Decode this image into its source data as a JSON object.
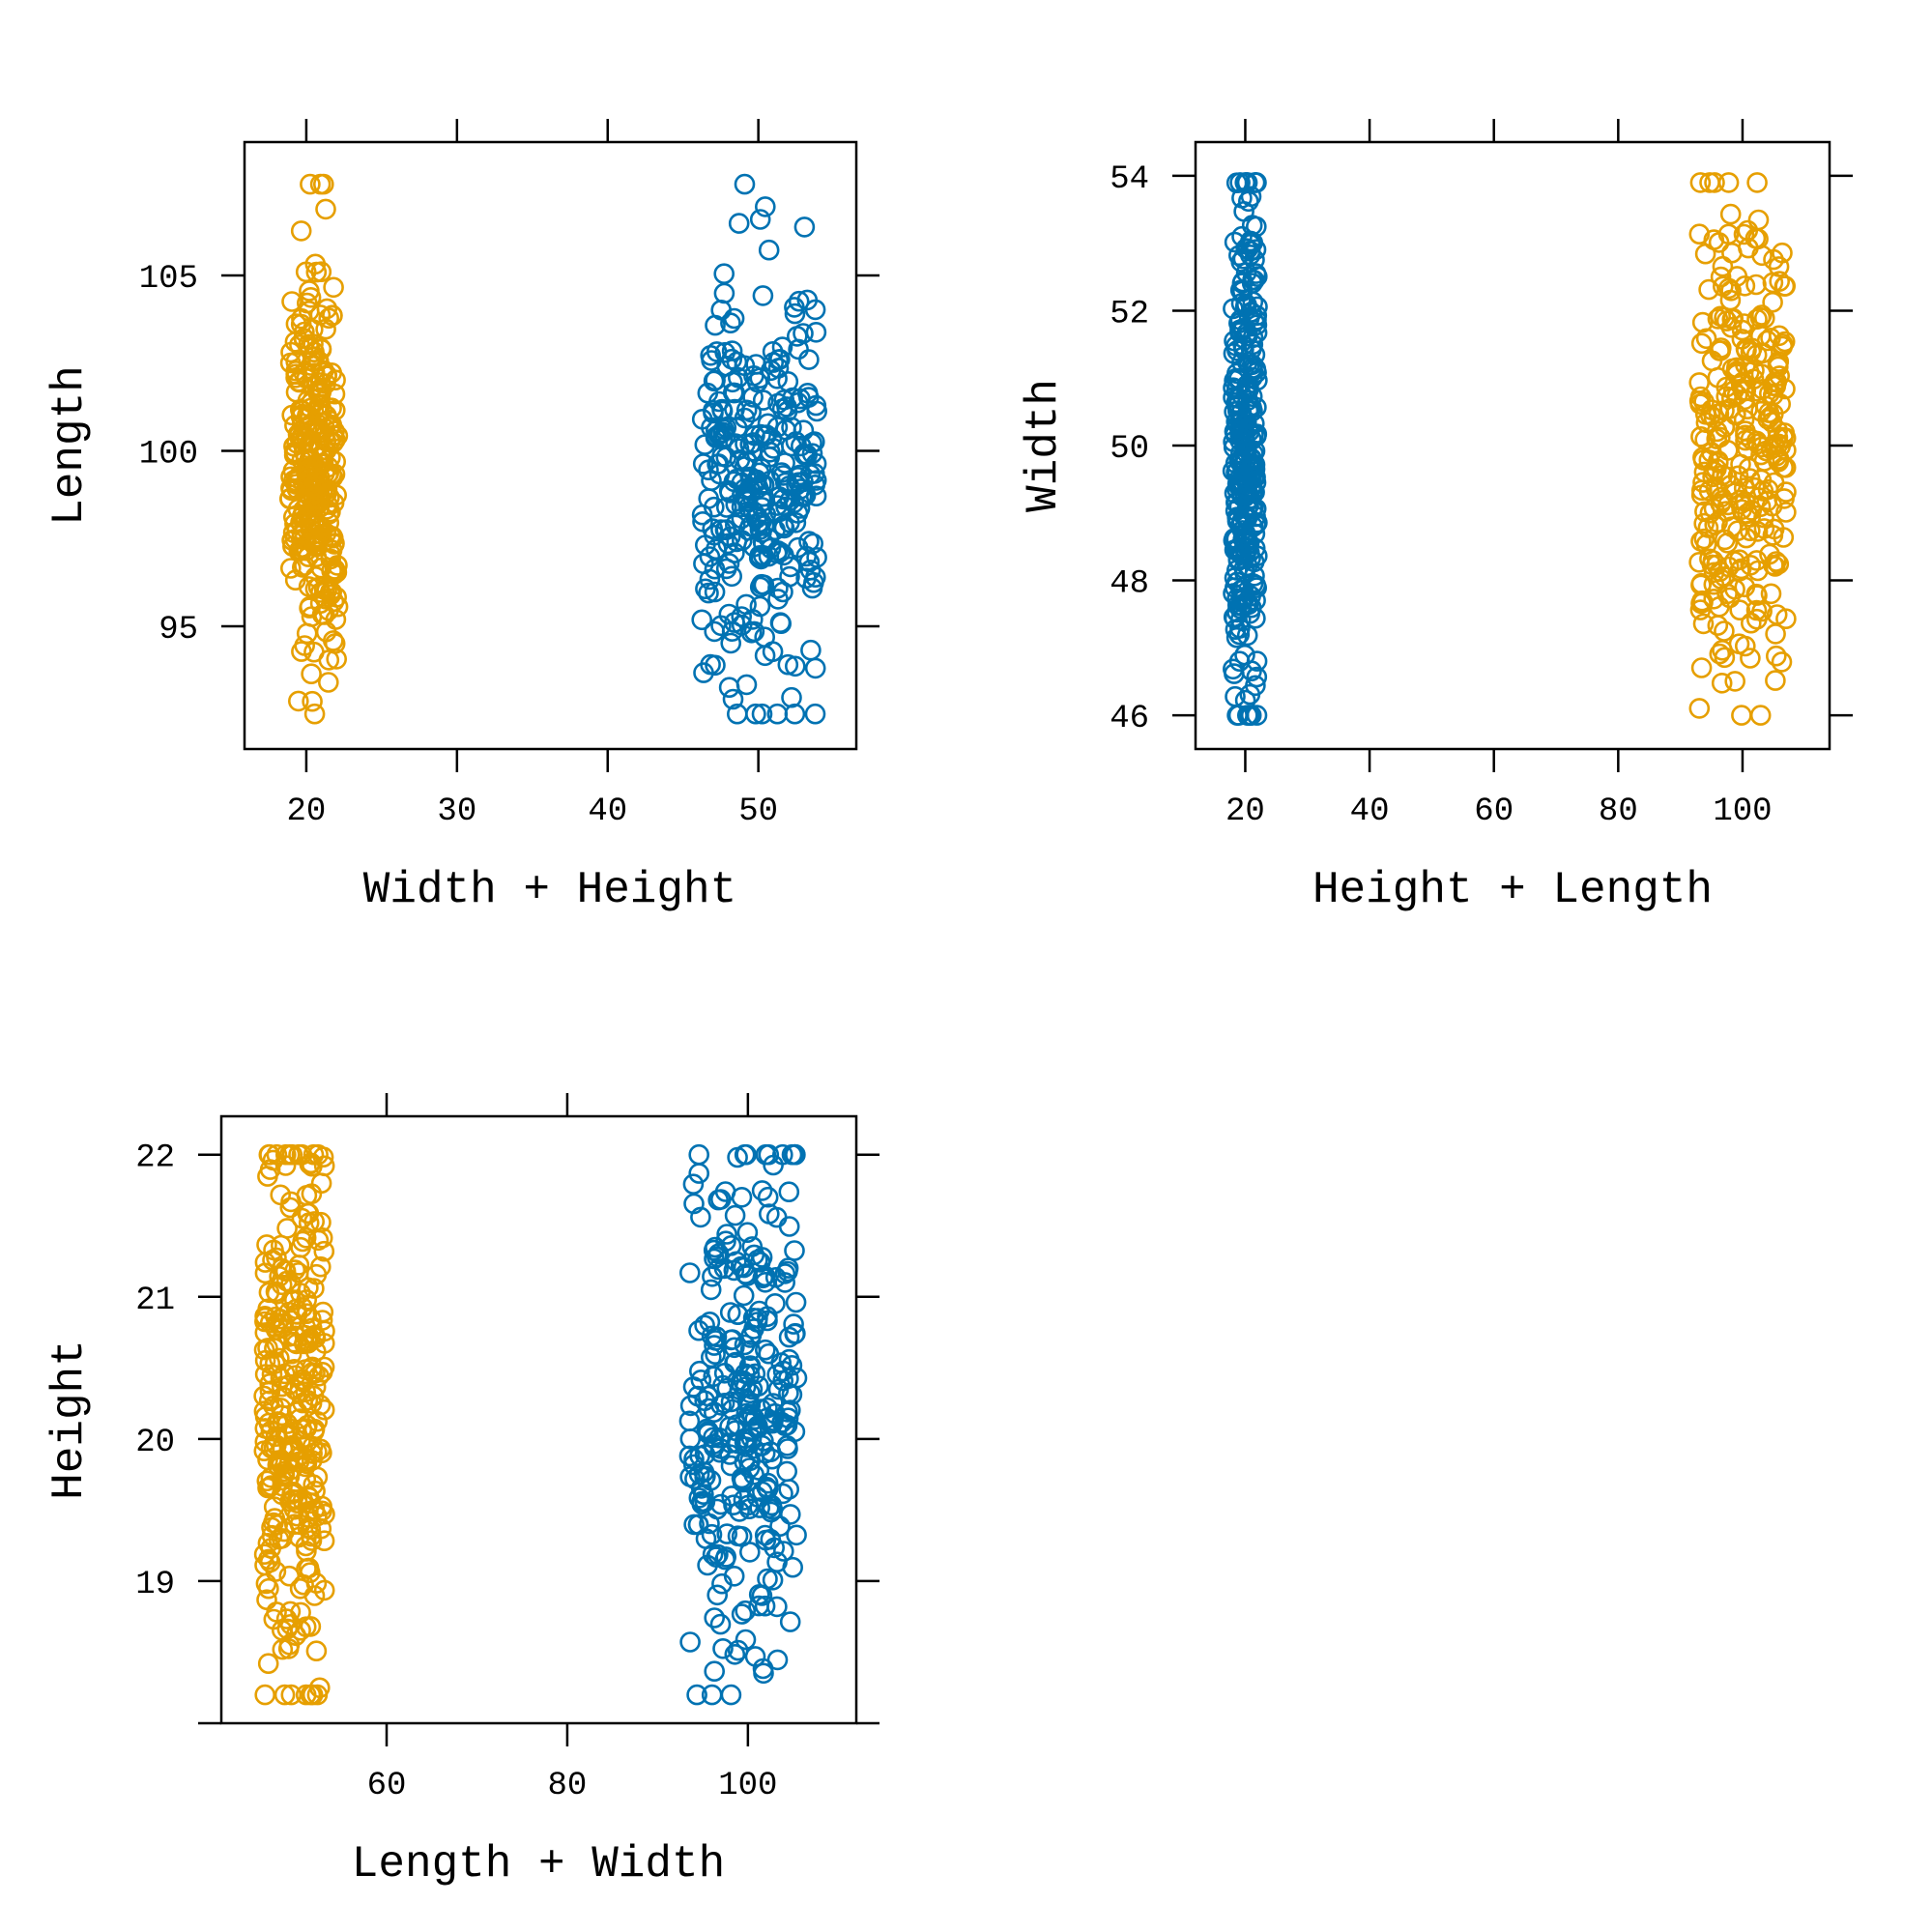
{
  "chart_data": [
    {
      "type": "scatter",
      "title": "",
      "xlabel": "Width + Height",
      "ylabel": "Length",
      "xlim": [
        15.9,
        56.5
      ],
      "ylim": [
        91.5,
        108.8
      ],
      "xticks": [
        20,
        30,
        40,
        50
      ],
      "yticks": [
        95,
        100,
        105
      ],
      "xtick_labels": [
        "20",
        "30",
        "40",
        "50"
      ],
      "ytick_labels": [
        "95",
        "100",
        "105"
      ],
      "grid": false,
      "series": [
        {
          "color": "#E69F00",
          "x_center": 20.5,
          "x_spread": 1.6,
          "y_min": 92.5,
          "y_max": 107.6,
          "y_center": 99.3,
          "y_sd": 2.7,
          "n": 300
        },
        {
          "color": "#0072B2",
          "x_center": 50.0,
          "x_spread": 3.9,
          "y_min": 92.5,
          "y_max": 107.6,
          "y_center": 99.0,
          "y_sd": 2.9,
          "n": 300
        }
      ]
    },
    {
      "type": "scatter",
      "title": "",
      "xlabel": "Height + Length",
      "ylabel": "Width",
      "xlim": [
        12,
        114
      ],
      "ylim": [
        45.5,
        54.5
      ],
      "xticks": [
        20,
        40,
        60,
        80,
        100
      ],
      "yticks": [
        46,
        48,
        50,
        52,
        54
      ],
      "xtick_labels": [
        "20",
        "40",
        "60",
        "80",
        "100"
      ],
      "ytick_labels": [
        "46",
        "48",
        "50",
        "52",
        "54"
      ],
      "grid": false,
      "series": [
        {
          "color": "#0072B2",
          "x_center": 20.0,
          "x_spread": 2.0,
          "y_min": 46.0,
          "y_max": 53.9,
          "y_center": 50.0,
          "y_sd": 1.8,
          "n": 300
        },
        {
          "color": "#E69F00",
          "x_center": 100.0,
          "x_spread": 7.0,
          "y_min": 46.0,
          "y_max": 53.9,
          "y_center": 50.0,
          "y_sd": 1.8,
          "n": 300
        }
      ]
    },
    {
      "type": "scatter",
      "title": "",
      "xlabel": "Length + Width",
      "ylabel": "Height",
      "xlim": [
        41.7,
        112
      ],
      "ylim": [
        18.0,
        22.27
      ],
      "xticks": [
        60,
        80,
        100
      ],
      "yticks": [
        19,
        20,
        21,
        22
      ],
      "xtick_labels": [
        "60",
        "80",
        "100"
      ],
      "ytick_labels": [
        "19",
        "20",
        "21",
        "22"
      ],
      "grid": false,
      "series": [
        {
          "color": "#E69F00",
          "x_center": 49.8,
          "x_spread": 3.4,
          "y_min": 18.2,
          "y_max": 22.0,
          "y_center": 20.2,
          "y_sd": 0.95,
          "n": 300
        },
        {
          "color": "#0072B2",
          "x_center": 99.5,
          "x_spread": 6.0,
          "y_min": 18.2,
          "y_max": 22.0,
          "y_center": 20.2,
          "y_sd": 0.95,
          "n": 300
        }
      ]
    }
  ]
}
